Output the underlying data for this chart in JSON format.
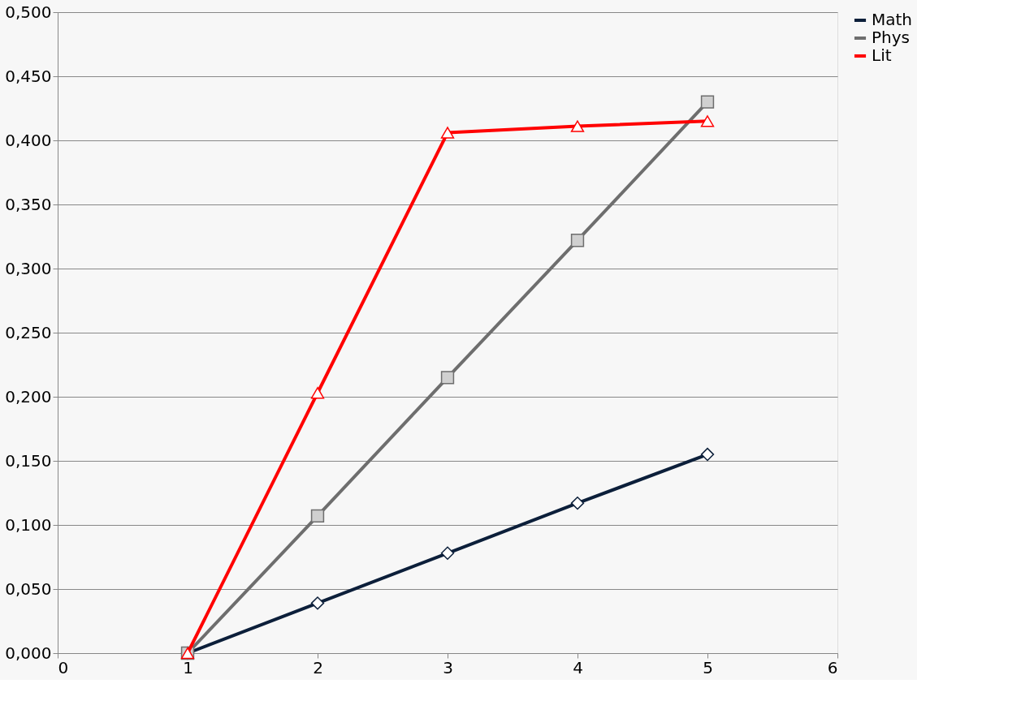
{
  "chart_data": {
    "type": "line",
    "x": [
      1,
      2,
      3,
      4,
      5
    ],
    "series": [
      {
        "name": "Math",
        "color": "#0c1f3a",
        "marker": "diamond",
        "values": [
          0.0,
          0.039,
          0.078,
          0.117,
          0.155
        ]
      },
      {
        "name": "Phys",
        "color": "#6e6e6e",
        "marker": "square",
        "values": [
          0.0,
          0.107,
          0.215,
          0.322,
          0.43
        ]
      },
      {
        "name": "Lit",
        "color": "#ff0000",
        "marker": "triangle",
        "values": [
          0.0,
          0.203,
          0.406,
          0.411,
          0.415
        ]
      }
    ],
    "xlim": [
      0,
      6
    ],
    "xticks": [
      0,
      1,
      2,
      3,
      4,
      5,
      6
    ],
    "ylim": [
      0,
      0.5
    ],
    "yticks": [
      {
        "value": 0,
        "label": "0,000"
      },
      {
        "value": 0.05,
        "label": "0,050"
      },
      {
        "value": 0.1,
        "label": "0,100"
      },
      {
        "value": 0.15,
        "label": "0,150"
      },
      {
        "value": 0.2,
        "label": "0,200"
      },
      {
        "value": 0.25,
        "label": "0,250"
      },
      {
        "value": 0.3,
        "label": "0,300"
      },
      {
        "value": 0.35,
        "label": "0,350"
      },
      {
        "value": 0.4,
        "label": "0,400"
      },
      {
        "value": 0.45,
        "label": "0,450"
      },
      {
        "value": 0.5,
        "label": "0,500"
      }
    ],
    "grid": "y",
    "legend": "right",
    "line_style": "solid"
  }
}
